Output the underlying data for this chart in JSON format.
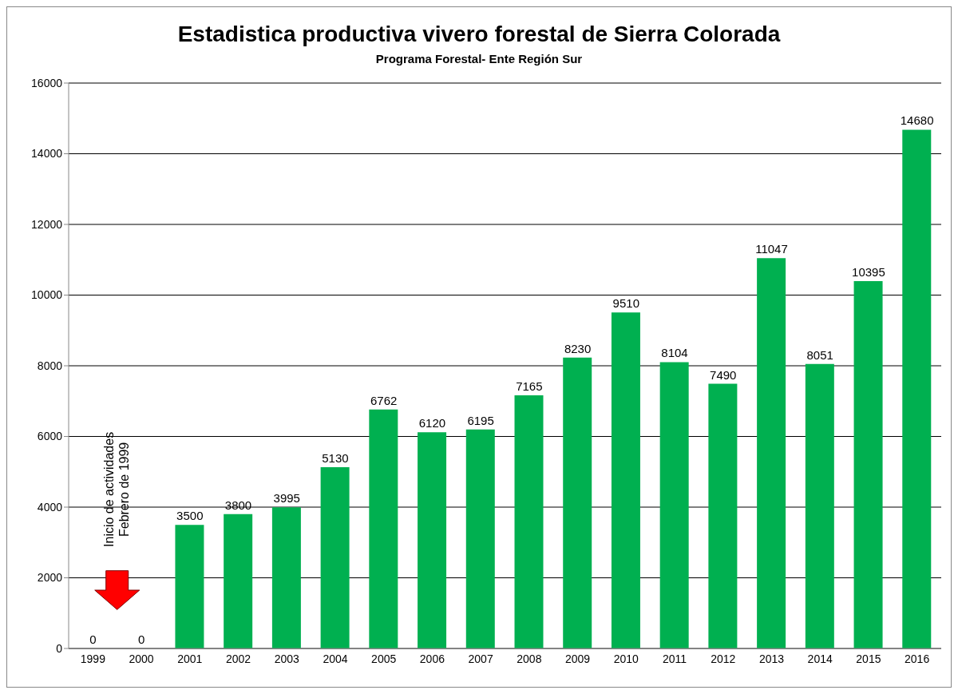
{
  "chart_data": {
    "type": "bar",
    "title": "Estadistica productiva vivero forestal de Sierra Colorada",
    "subtitle": "Programa Forestal- Ente Región Sur",
    "categories": [
      "1999",
      "2000",
      "2001",
      "2002",
      "2003",
      "2004",
      "2005",
      "2006",
      "2007",
      "2008",
      "2009",
      "2010",
      "2011",
      "2012",
      "2013",
      "2014",
      "2015",
      "2016"
    ],
    "values": [
      0,
      0,
      3500,
      3800,
      3995,
      5130,
      6762,
      6120,
      6195,
      7165,
      8230,
      9510,
      8104,
      7490,
      11047,
      8051,
      10395,
      14680
    ],
    "color": "#00b050",
    "ylim": [
      0,
      16000
    ],
    "yticks": [
      0,
      2000,
      4000,
      6000,
      8000,
      10000,
      12000,
      14000,
      16000
    ],
    "grid": "y",
    "data_labels": true,
    "annotations": [
      "Inicio de actividades\nFebrero de 1999"
    ]
  }
}
